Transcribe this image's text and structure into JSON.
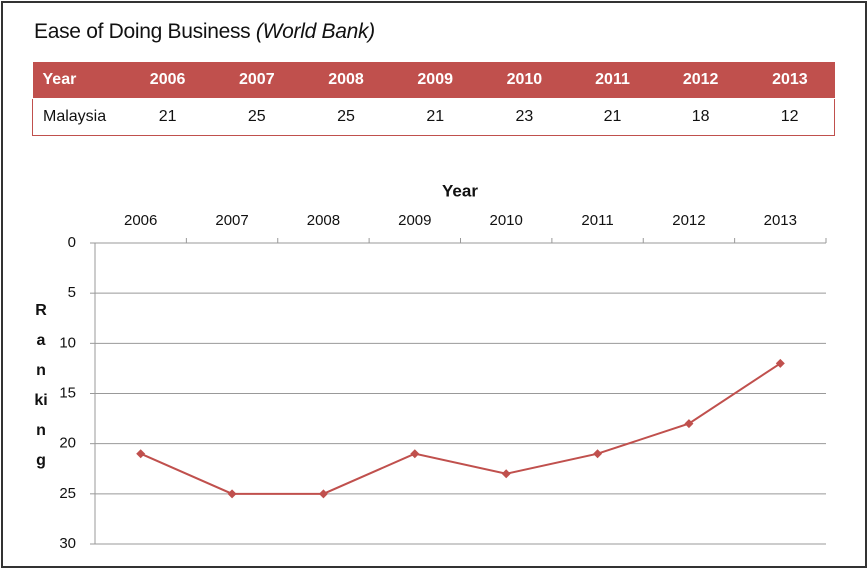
{
  "title": "Ease of Doing Business",
  "title_note": "(World Bank)",
  "table": {
    "header": [
      "Year",
      "2006",
      "2007",
      "2008",
      "2009",
      "2010",
      "2011",
      "2012",
      "2013"
    ],
    "rows": [
      [
        "Malaysia",
        21,
        25,
        25,
        21,
        23,
        21,
        18,
        12
      ]
    ]
  },
  "chart_data": {
    "type": "line",
    "xlabel": "Year",
    "ylabel": "Ranking",
    "categories": [
      "2006",
      "2007",
      "2008",
      "2009",
      "2010",
      "2011",
      "2012",
      "2013"
    ],
    "series": [
      {
        "name": "Malaysia",
        "color": "#c0504d",
        "values": [
          21,
          25,
          25,
          21,
          23,
          21,
          18,
          12
        ]
      }
    ],
    "ylim": [
      30,
      0
    ],
    "yticks": [
      0,
      5,
      10,
      15,
      20,
      25,
      30
    ],
    "grid": true,
    "x_axis_position": "top",
    "legend": false
  }
}
